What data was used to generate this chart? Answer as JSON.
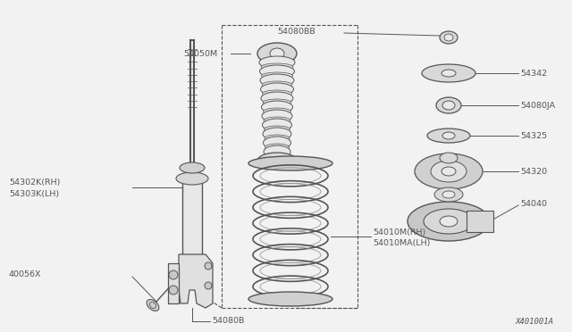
{
  "bg_color": "#f2f2f2",
  "line_color": "#555555",
  "watermark": "X401001A",
  "labels": {
    "54080BB": "54080BB",
    "54342": "54342",
    "54080JA": "54080JA",
    "54325": "54325",
    "54320": "54320",
    "54040": "54040",
    "54050M": "54050M",
    "54302K": "54302K(RH)\n54303K(LH)",
    "54010M": "54010M(RH)\n54010MA(LH)",
    "40056X": "40056X",
    "54080B": "54080B"
  }
}
